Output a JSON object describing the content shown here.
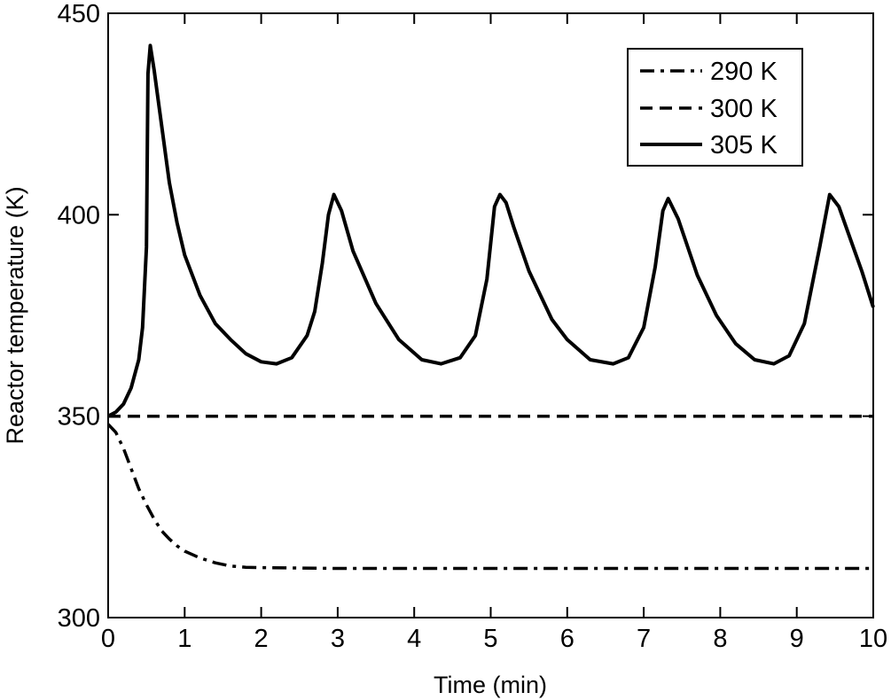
{
  "chart_data": {
    "type": "line",
    "title": "",
    "xlabel": "Time (min)",
    "ylabel": "Reactor temperature (K)",
    "xlim": [
      0,
      10
    ],
    "ylim": [
      300,
      450
    ],
    "xticks": [
      "0",
      "1",
      "2",
      "3",
      "4",
      "5",
      "6",
      "7",
      "8",
      "9",
      "10"
    ],
    "yticks": [
      "300",
      "350",
      "400",
      "450"
    ],
    "grid": false,
    "legend_position": "top-right",
    "colors": {
      "line": "#000000",
      "background": "#ffffff"
    },
    "series": [
      {
        "name": "290 K",
        "style": "dash-dot",
        "x": [
          0,
          0.1,
          0.2,
          0.3,
          0.4,
          0.5,
          0.6,
          0.7,
          0.8,
          0.9,
          1.0,
          1.2,
          1.4,
          1.6,
          1.8,
          2.0,
          2.5,
          3,
          4,
          5,
          6,
          7,
          8,
          9,
          10
        ],
        "y": [
          348,
          346,
          342,
          337,
          332,
          328,
          324.5,
          321.5,
          319.5,
          317.8,
          316.5,
          314.8,
          313.6,
          312.8,
          312.5,
          312.4,
          312.3,
          312.2,
          312.2,
          312.2,
          312.2,
          312.2,
          312.2,
          312.2,
          312.2
        ]
      },
      {
        "name": "300 K",
        "style": "dashed",
        "x": [
          0,
          10
        ],
        "y": [
          350,
          350
        ]
      },
      {
        "name": "305 K",
        "style": "solid",
        "x": [
          0,
          0.1,
          0.2,
          0.3,
          0.4,
          0.45,
          0.5,
          0.52,
          0.55,
          0.6,
          0.7,
          0.8,
          0.9,
          1.0,
          1.2,
          1.4,
          1.6,
          1.8,
          2.0,
          2.2,
          2.4,
          2.6,
          2.7,
          2.8,
          2.88,
          2.95,
          3.05,
          3.2,
          3.5,
          3.8,
          4.1,
          4.35,
          4.6,
          4.8,
          4.95,
          5.05,
          5.12,
          5.2,
          5.3,
          5.5,
          5.8,
          6.0,
          6.3,
          6.6,
          6.8,
          7.0,
          7.15,
          7.25,
          7.32,
          7.45,
          7.7,
          7.95,
          8.2,
          8.45,
          8.7,
          8.9,
          9.1,
          9.3,
          9.43,
          9.55,
          9.7,
          9.85,
          10.0
        ],
        "y": [
          350,
          351,
          353,
          357,
          364,
          372,
          392,
          435,
          442,
          436,
          422,
          408,
          398,
          390,
          380,
          373,
          369,
          365.5,
          363.5,
          363,
          364.5,
          370,
          376,
          388,
          400,
          405,
          401,
          391,
          378,
          369,
          364,
          363,
          364.5,
          370,
          384,
          402,
          405,
          403,
          397,
          386,
          374,
          369,
          364,
          363,
          364.5,
          372,
          387,
          401,
          404,
          399,
          385,
          375,
          368,
          364,
          363,
          365,
          373,
          392,
          405,
          402,
          394,
          386,
          377
        ]
      }
    ]
  }
}
